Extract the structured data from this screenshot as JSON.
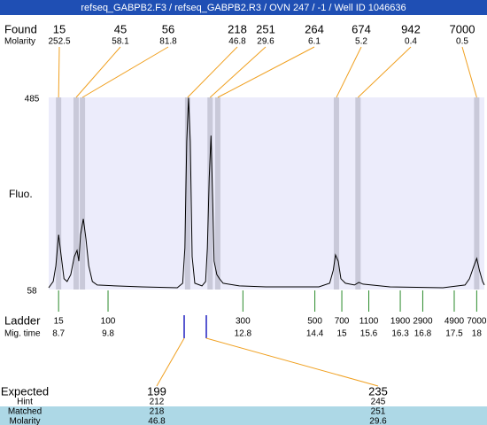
{
  "header": {
    "title": "refseq_GABPB2.F3 / refseq_GABPB2.R3 / OVN 247 / -1 / Well ID 1046636"
  },
  "found": {
    "label": "Found",
    "molarity_label": "Molarity",
    "peaks": [
      {
        "size": 15,
        "molarity": 252.5,
        "time": 8.7
      },
      {
        "size": 45,
        "molarity": 58.1,
        "time": 9.09
      },
      {
        "size": 56,
        "molarity": 81.8,
        "time": 9.23
      },
      {
        "size": 218,
        "molarity": 46.8,
        "time": 11.57
      },
      {
        "size": 251,
        "molarity": 29.6,
        "time": 12.07
      },
      {
        "size": 264,
        "molarity": 6.1,
        "time": 12.24
      },
      {
        "size": 674,
        "molarity": 5.2,
        "time": 14.88
      },
      {
        "size": 942,
        "molarity": 0.4,
        "time": 15.36
      },
      {
        "size": 7000,
        "molarity": 0.5,
        "time": 18.0
      }
    ]
  },
  "plot": {
    "y_label": "Fluo.",
    "ylim": [
      58,
      485
    ],
    "yticks": [
      58,
      485
    ],
    "xlim": [
      8.48,
      18.17
    ],
    "trace": {
      "times": [
        8.48,
        8.58,
        8.64,
        8.7,
        8.76,
        8.82,
        8.89,
        8.97,
        9.05,
        9.11,
        9.15,
        9.19,
        9.25,
        9.31,
        9.37,
        9.45,
        9.56,
        9.96,
        10.55,
        11.34,
        11.46,
        11.51,
        11.55,
        11.59,
        11.63,
        11.67,
        11.73,
        11.89,
        11.97,
        12.01,
        12.05,
        12.09,
        12.13,
        12.16,
        12.22,
        12.28,
        12.36,
        12.72,
        13.31,
        14.49,
        14.73,
        14.81,
        14.86,
        14.92,
        14.98,
        15.08,
        15.28,
        15.38,
        15.47,
        16.07,
        17.25,
        17.74,
        17.84,
        17.94,
        18.0,
        18.06,
        18.13,
        18.17
      ],
      "values": [
        62,
        76,
        111,
        180,
        131,
        82,
        76,
        91,
        131,
        145,
        121,
        180,
        215,
        170,
        111,
        76,
        68,
        66,
        64,
        62,
        72,
        150,
        387,
        484,
        387,
        131,
        72,
        66,
        76,
        150,
        307,
        400,
        249,
        121,
        91,
        82,
        72,
        66,
        64,
        64,
        72,
        101,
        135,
        121,
        82,
        72,
        68,
        74,
        70,
        64,
        62,
        68,
        82,
        111,
        127,
        101,
        76,
        68
      ]
    }
  },
  "ladder": {
    "label": "Ladder",
    "time_label": "Mig. time",
    "markers": [
      {
        "size": 15,
        "time": 8.7
      },
      {
        "size": 100,
        "time": 9.8
      },
      {
        "size": 300,
        "time": 12.8
      },
      {
        "size": 500,
        "time": 14.4
      },
      {
        "size": 700,
        "time": 15
      },
      {
        "size": 1100,
        "time": 15.6
      },
      {
        "size": 1900,
        "time": 16.3
      },
      {
        "size": 2900,
        "time": 16.8
      },
      {
        "size": 4900,
        "time": 17.5
      },
      {
        "size": 7000,
        "time": 18
      }
    ]
  },
  "expected": {
    "labels": [
      "Expected",
      "Hint",
      "Matched",
      "Molarity"
    ],
    "columns": [
      {
        "expected": 199,
        "hint": 212,
        "matched": 218,
        "molarity": 46.8
      },
      {
        "expected": 235,
        "hint": 245,
        "matched": 251,
        "molarity": 29.6
      }
    ]
  }
}
